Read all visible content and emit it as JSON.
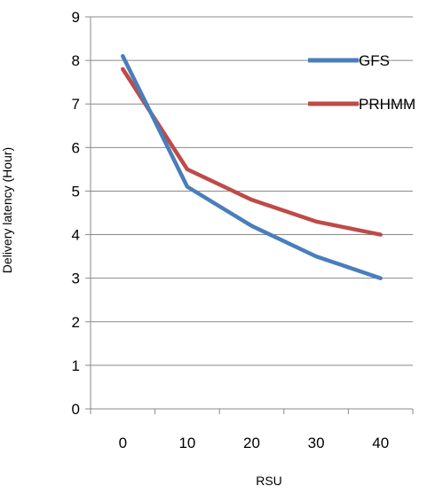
{
  "chart_data": {
    "type": "line",
    "title": "",
    "xlabel": "RSU",
    "ylabel": "Delivery latency (Hour)",
    "categories": [
      "0",
      "10",
      "20",
      "30",
      "40"
    ],
    "x": [
      0,
      10,
      20,
      30,
      40
    ],
    "ylim": [
      0,
      9
    ],
    "yticks": [
      "0",
      "1",
      "2",
      "3",
      "4",
      "5",
      "6",
      "7",
      "8",
      "9"
    ],
    "grid": true,
    "legend_position": "right",
    "series": [
      {
        "name": "GFS",
        "color": "#4A7EBB",
        "values": [
          8.1,
          5.1,
          4.2,
          3.5,
          3.0
        ]
      },
      {
        "name": "PRHMM",
        "color": "#BE4B48",
        "values": [
          7.8,
          5.5,
          4.8,
          4.3,
          4.0
        ]
      }
    ]
  }
}
